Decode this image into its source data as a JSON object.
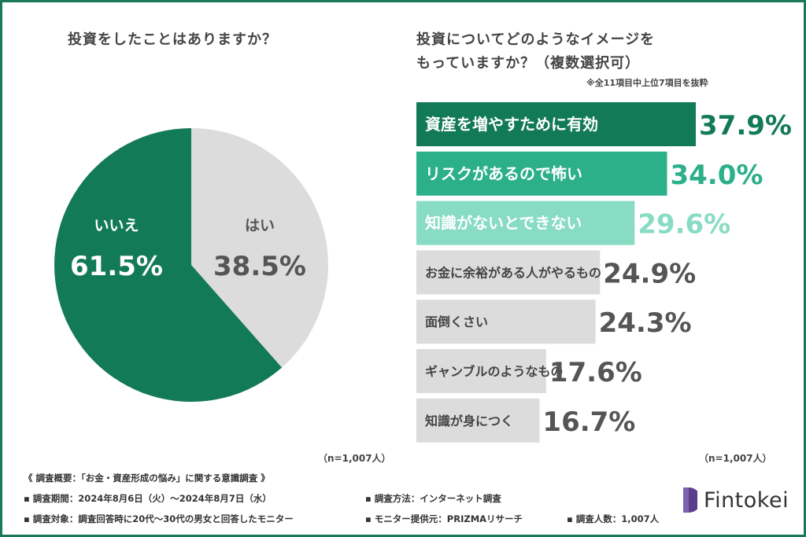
{
  "left_title": "投資をしたことはありますか？",
  "right_title_lines": [
    "投資についてどのようなイメージを",
    "もっていますか？（複数選択可）"
  ],
  "right_note": "※全11項目中上位7項目を抜粋",
  "n_left": "（n=1,007人）",
  "n_right": "（n=1,007人）",
  "footer": {
    "heading": "《 調査概要：「お金・資産形成の悩み」に関する意識調査 》",
    "period": "▪ 調査期間：2024年8月6日（火）〜2024年8月7日（水）",
    "method": "▪ 調査方法：インターネット調査",
    "target": "▪ 調査対象：調査回答時に20代〜30代の男女と回答したモニター",
    "provider": "▪ モニター提供元：PRIZMAリサーチ",
    "count": "▪ 調査人数：1,007人"
  },
  "logo_text": "Fintokei",
  "colors": {
    "dark_green": "#137a57",
    "mid_green": "#2bb089",
    "light_green": "#88dcc3",
    "gray": "#dcdcdc",
    "frame": "#1a7a55",
    "text": "#444444",
    "logo_purple": "#5a3e8c"
  },
  "chart_data": [
    {
      "type": "pie",
      "slices": [
        {
          "name": "はい",
          "value": 38.5,
          "value_label": "38.5%",
          "color": "#dcdcdc"
        },
        {
          "name": "いいえ",
          "value": 61.5,
          "value_label": "61.5%",
          "color": "#137a57"
        }
      ]
    },
    {
      "type": "bar",
      "orientation": "horizontal",
      "categories": [
        "資産を増やすために有効",
        "リスクがあるので怖い",
        "知識がないとできない",
        "お金に余裕がある人がやるもの",
        "面倒くさい",
        "ギャンブルのようなもの",
        "知識が身につく"
      ],
      "values": [
        37.9,
        34.0,
        29.6,
        24.9,
        24.3,
        17.6,
        16.7
      ],
      "value_labels": [
        "37.9%",
        "34.0%",
        "29.6%",
        "24.9%",
        "24.3%",
        "17.6%",
        "16.7%"
      ],
      "bar_colors": [
        "#137a57",
        "#2bb089",
        "#88dcc3",
        "#dcdcdc",
        "#dcdcdc",
        "#dcdcdc",
        "#dcdcdc"
      ],
      "label_colors": [
        "#ffffff",
        "#ffffff",
        "#ffffff",
        "#444444",
        "#444444",
        "#444444",
        "#444444"
      ],
      "value_colors": [
        "#137a57",
        "#2bb089",
        "#88dcc3",
        "#555555",
        "#555555",
        "#555555",
        "#555555"
      ]
    }
  ]
}
